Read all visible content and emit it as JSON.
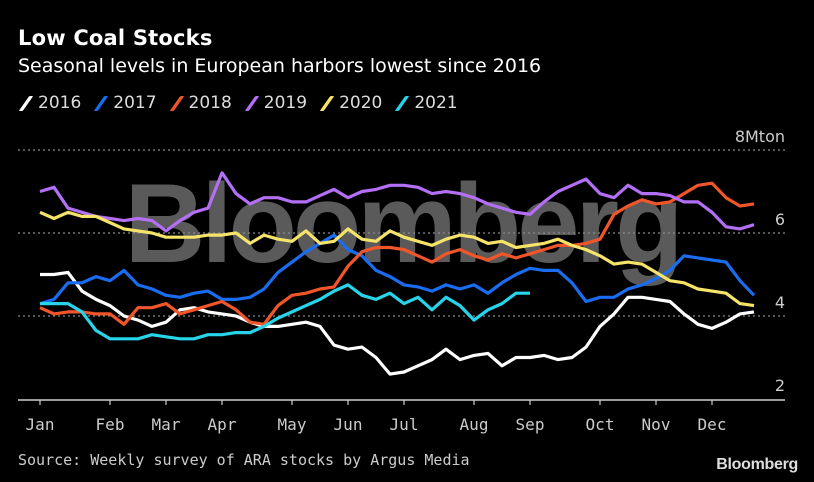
{
  "header": {
    "title": "Low Coal Stocks",
    "subtitle": "Seasonal levels in European harbors lowest since 2016"
  },
  "footer": {
    "source": "Source: Weekly survey of ARA stocks by Argus Media",
    "brand": "Bloomberg"
  },
  "watermark": "Bloomberg",
  "chart_data": {
    "type": "line",
    "title": "Low Coal Stocks",
    "subtitle": "Seasonal levels in European harbors lowest since 2016",
    "xlabel": "",
    "ylabel": "Mton",
    "unit_label": "8Mton",
    "ylim": [
      2,
      8
    ],
    "yticks": [
      2,
      4,
      6,
      8
    ],
    "ytick_labels": [
      "2",
      "4",
      "6",
      "8Mton"
    ],
    "grid": true,
    "legend_position": "top-left",
    "x_unit": "week of year",
    "x_range": [
      1,
      52
    ],
    "month_ticks": [
      {
        "label": "Jan",
        "week": 1
      },
      {
        "label": "Feb",
        "week": 6
      },
      {
        "label": "Mar",
        "week": 10
      },
      {
        "label": "Apr",
        "week": 14
      },
      {
        "label": "May",
        "week": 19
      },
      {
        "label": "Jun",
        "week": 23
      },
      {
        "label": "Jul",
        "week": 27
      },
      {
        "label": "Aug",
        "week": 32
      },
      {
        "label": "Sep",
        "week": 36
      },
      {
        "label": "Oct",
        "week": 41
      },
      {
        "label": "Nov",
        "week": 45
      },
      {
        "label": "Dec",
        "week": 49
      }
    ],
    "series": [
      {
        "name": "2016",
        "color": "#ffffff",
        "values": [
          5.0,
          5.0,
          5.05,
          4.6,
          4.4,
          4.25,
          4.0,
          3.9,
          3.75,
          3.85,
          4.15,
          4.2,
          4.1,
          4.05,
          4.0,
          3.85,
          3.75,
          3.75,
          3.8,
          3.85,
          3.75,
          3.3,
          3.2,
          3.25,
          3.0,
          2.6,
          2.65,
          2.8,
          2.95,
          3.2,
          2.95,
          3.05,
          3.1,
          2.8,
          3.0,
          3.0,
          3.05,
          2.95,
          3.0,
          3.25,
          3.75,
          4.05,
          4.45,
          4.45,
          4.4,
          4.35,
          4.05,
          3.8,
          3.7,
          3.85,
          4.05,
          4.1
        ]
      },
      {
        "name": "2017",
        "color": "#1a6cf0",
        "values": [
          4.3,
          4.4,
          4.8,
          4.8,
          4.95,
          4.85,
          5.1,
          4.75,
          4.65,
          4.5,
          4.45,
          4.55,
          4.6,
          4.4,
          4.4,
          4.45,
          4.65,
          5.05,
          5.3,
          5.55,
          5.75,
          5.95,
          5.6,
          5.45,
          5.1,
          4.95,
          4.75,
          4.7,
          4.6,
          4.75,
          4.65,
          4.75,
          4.55,
          4.8,
          5.0,
          5.15,
          5.1,
          5.1,
          4.8,
          4.35,
          4.45,
          4.45,
          4.65,
          4.75,
          4.9,
          5.1,
          5.45,
          5.4,
          5.35,
          5.3,
          4.85,
          4.5
        ]
      },
      {
        "name": "2018",
        "color": "#f0562a",
        "values": [
          4.2,
          4.05,
          4.1,
          4.1,
          4.05,
          4.05,
          3.8,
          4.2,
          4.2,
          4.3,
          4.05,
          4.15,
          4.25,
          4.35,
          4.15,
          3.85,
          3.8,
          4.25,
          4.5,
          4.55,
          4.65,
          4.7,
          5.2,
          5.55,
          5.65,
          5.65,
          5.6,
          5.45,
          5.3,
          5.5,
          5.6,
          5.45,
          5.35,
          5.5,
          5.4,
          5.5,
          5.6,
          5.7,
          5.7,
          5.75,
          5.85,
          6.45,
          6.65,
          6.8,
          6.7,
          6.75,
          6.95,
          7.15,
          7.2,
          6.85,
          6.65,
          6.7
        ]
      },
      {
        "name": "2019",
        "color": "#b36ff5",
        "values": [
          7.0,
          7.1,
          6.6,
          6.5,
          6.4,
          6.35,
          6.3,
          6.35,
          6.3,
          6.05,
          6.3,
          6.5,
          6.6,
          7.45,
          6.95,
          6.7,
          6.85,
          6.85,
          6.75,
          6.75,
          6.9,
          7.05,
          6.85,
          7.0,
          7.05,
          7.15,
          7.15,
          7.1,
          6.95,
          7.0,
          6.95,
          6.85,
          6.7,
          6.6,
          6.5,
          6.45,
          6.75,
          7.0,
          7.15,
          7.3,
          6.95,
          6.85,
          7.15,
          6.95,
          6.95,
          6.9,
          6.75,
          6.75,
          6.5,
          6.15,
          6.1,
          6.2
        ]
      },
      {
        "name": "2020",
        "color": "#f5e36a",
        "values": [
          6.5,
          6.35,
          6.5,
          6.4,
          6.4,
          6.25,
          6.1,
          6.05,
          6.0,
          5.9,
          5.9,
          5.9,
          5.95,
          5.95,
          6.0,
          5.75,
          5.95,
          5.85,
          5.8,
          6.05,
          5.75,
          5.8,
          6.1,
          5.85,
          5.8,
          6.05,
          5.9,
          5.8,
          5.7,
          5.85,
          5.95,
          5.9,
          5.75,
          5.8,
          5.65,
          5.7,
          5.75,
          5.85,
          5.7,
          5.6,
          5.45,
          5.25,
          5.3,
          5.25,
          5.05,
          4.85,
          4.8,
          4.65,
          4.6,
          4.55,
          4.3,
          4.25
        ]
      },
      {
        "name": "2021",
        "color": "#27d4ea",
        "values": [
          4.3,
          4.3,
          4.3,
          4.1,
          3.65,
          3.45,
          3.45,
          3.45,
          3.55,
          3.5,
          3.45,
          3.45,
          3.55,
          3.55,
          3.6,
          3.6,
          3.75,
          3.95,
          4.1,
          4.25,
          4.4,
          4.6,
          4.75,
          4.5,
          4.4,
          4.55,
          4.3,
          4.45,
          4.15,
          4.45,
          4.25,
          3.9,
          4.15,
          4.3,
          4.55,
          4.55
        ]
      }
    ]
  }
}
